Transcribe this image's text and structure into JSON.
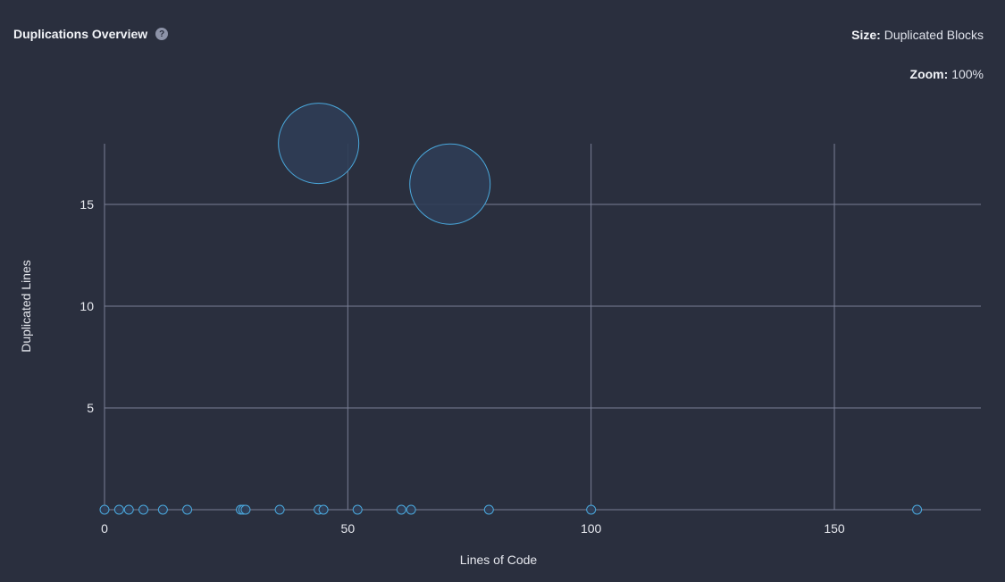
{
  "header": {
    "title": "Duplications Overview",
    "help_symbol": "?",
    "size_label": "Size:",
    "size_value": "Duplicated Blocks",
    "zoom_label": "Zoom:",
    "zoom_value": "100%"
  },
  "colors": {
    "background": "#2a2f3e",
    "grid": "#7a7f96",
    "bubble_stroke": "#4aa8dc",
    "bubble_fill": "#2f3d55",
    "text": "#e6e8ee"
  },
  "chart_data": {
    "type": "scatter",
    "subtype": "bubble",
    "title": "",
    "xlabel": "Lines of Code",
    "ylabel": "Duplicated Lines",
    "xlim": [
      0,
      180
    ],
    "ylim": [
      0,
      18
    ],
    "x_ticks": [
      0,
      50,
      100,
      150
    ],
    "y_ticks": [
      5,
      10,
      15
    ],
    "grid": true,
    "size_metric": "Duplicated Blocks",
    "points": [
      {
        "x": 0,
        "y": 0,
        "size": 0
      },
      {
        "x": 3,
        "y": 0,
        "size": 0
      },
      {
        "x": 5,
        "y": 0,
        "size": 0
      },
      {
        "x": 8,
        "y": 0,
        "size": 0
      },
      {
        "x": 12,
        "y": 0,
        "size": 0
      },
      {
        "x": 17,
        "y": 0,
        "size": 0
      },
      {
        "x": 28,
        "y": 0,
        "size": 0
      },
      {
        "x": 28.5,
        "y": 0,
        "size": 0
      },
      {
        "x": 29,
        "y": 0,
        "size": 0
      },
      {
        "x": 36,
        "y": 0,
        "size": 0
      },
      {
        "x": 44,
        "y": 0,
        "size": 0
      },
      {
        "x": 45,
        "y": 0,
        "size": 0
      },
      {
        "x": 52,
        "y": 0,
        "size": 0
      },
      {
        "x": 61,
        "y": 0,
        "size": 0
      },
      {
        "x": 63,
        "y": 0,
        "size": 0
      },
      {
        "x": 79,
        "y": 0,
        "size": 0
      },
      {
        "x": 100,
        "y": 0,
        "size": 0
      },
      {
        "x": 167,
        "y": 0,
        "size": 0
      },
      {
        "x": 44,
        "y": 18,
        "size": 2
      },
      {
        "x": 71,
        "y": 16,
        "size": 2
      }
    ]
  }
}
